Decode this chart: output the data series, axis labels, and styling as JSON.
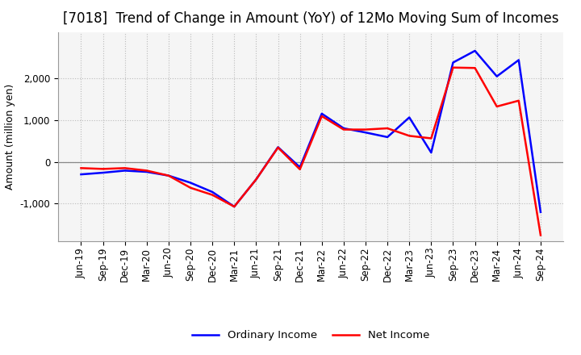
{
  "title": "[7018]  Trend of Change in Amount (YoY) of 12Mo Moving Sum of Incomes",
  "ylabel": "Amount (million yen)",
  "x_labels": [
    "Jun-19",
    "Sep-19",
    "Dec-19",
    "Mar-20",
    "Jun-20",
    "Sep-20",
    "Dec-20",
    "Mar-21",
    "Jun-21",
    "Sep-21",
    "Dec-21",
    "Mar-22",
    "Jun-22",
    "Sep-22",
    "Dec-22",
    "Mar-23",
    "Jun-23",
    "Sep-23",
    "Dec-23",
    "Mar-24",
    "Jun-24",
    "Sep-24"
  ],
  "ordinary_income": [
    -300,
    -260,
    -210,
    -240,
    -330,
    -500,
    -720,
    -1070,
    -420,
    350,
    -130,
    1150,
    800,
    700,
    590,
    1060,
    220,
    2370,
    2650,
    2040,
    2430,
    -1200
  ],
  "net_income": [
    -150,
    -170,
    -150,
    -210,
    -330,
    -620,
    -790,
    -1070,
    -420,
    340,
    -180,
    1090,
    770,
    770,
    800,
    620,
    560,
    2250,
    2240,
    1320,
    1460,
    -1750
  ],
  "ordinary_color": "#0000ff",
  "net_color": "#ff0000",
  "background_color": "#ffffff",
  "plot_bg_color": "#f5f5f5",
  "grid_color": "#bbbbbb",
  "zero_line_color": "#888888",
  "ylim": [
    -1900,
    3100
  ],
  "yticks": [
    -1000,
    0,
    1000,
    2000
  ],
  "title_fontsize": 12,
  "axis_fontsize": 9,
  "tick_fontsize": 8.5,
  "legend_fontsize": 9.5
}
